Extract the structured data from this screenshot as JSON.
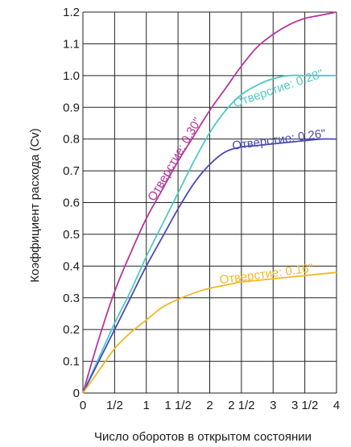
{
  "chart_data": {
    "type": "line",
    "title": "",
    "xlabel": "Число оборотов в открытом состоянии",
    "ylabel": "Коэффициент расхода (Cv)",
    "xlim": [
      0,
      4
    ],
    "ylim": [
      0,
      1.2
    ],
    "grid": true,
    "x_ticks": [
      {
        "value": 0,
        "label": "0"
      },
      {
        "value": 0.5,
        "label": "1/2"
      },
      {
        "value": 1,
        "label": "1"
      },
      {
        "value": 1.5,
        "label": "1 1/2"
      },
      {
        "value": 2,
        "label": "2"
      },
      {
        "value": 2.5,
        "label": "2 1/2"
      },
      {
        "value": 3,
        "label": "3"
      },
      {
        "value": 3.5,
        "label": "3 1/2"
      },
      {
        "value": 4,
        "label": "4"
      }
    ],
    "y_ticks": [
      {
        "value": 0,
        "label": "0"
      },
      {
        "value": 0.1,
        "label": "0.1"
      },
      {
        "value": 0.2,
        "label": "0.2"
      },
      {
        "value": 0.3,
        "label": "0.3"
      },
      {
        "value": 0.4,
        "label": "0.4"
      },
      {
        "value": 0.5,
        "label": "0.5"
      },
      {
        "value": 0.6,
        "label": "0.6"
      },
      {
        "value": 0.7,
        "label": "0.7"
      },
      {
        "value": 0.8,
        "label": "0.8"
      },
      {
        "value": 0.9,
        "label": "0.9"
      },
      {
        "value": 1.0,
        "label": "1.0"
      },
      {
        "value": 1.1,
        "label": "1.1"
      },
      {
        "value": 1.2,
        "label": "1.2"
      }
    ],
    "series": [
      {
        "name": "Отверстие: 0.30\"",
        "color": "#b5379f",
        "x": [
          0,
          0.25,
          0.5,
          0.75,
          1,
          1.25,
          1.5,
          1.75,
          2,
          2.25,
          2.5,
          2.75,
          3,
          3.25,
          3.5,
          3.75,
          4
        ],
        "y": [
          0,
          0.17,
          0.32,
          0.44,
          0.55,
          0.64,
          0.73,
          0.81,
          0.89,
          0.96,
          1.03,
          1.09,
          1.13,
          1.16,
          1.18,
          1.19,
          1.2
        ]
      },
      {
        "name": "Отверстие: 0.28\"",
        "color": "#4ec9c4",
        "x": [
          0,
          0.25,
          0.5,
          0.75,
          1,
          1.25,
          1.5,
          1.75,
          2,
          2.25,
          2.5,
          2.75,
          3,
          3.25,
          3.5,
          3.75,
          4
        ],
        "y": [
          0,
          0.11,
          0.22,
          0.32,
          0.43,
          0.53,
          0.63,
          0.73,
          0.82,
          0.89,
          0.94,
          0.97,
          0.99,
          1.0,
          1.0,
          1.0,
          1.0
        ]
      },
      {
        "name": "Отверстие: 0.26\"",
        "color": "#4a4ab5",
        "x": [
          0,
          0.25,
          0.5,
          0.75,
          1,
          1.25,
          1.5,
          1.75,
          2,
          2.25,
          2.5,
          2.75,
          3,
          3.25,
          3.5,
          3.75,
          4
        ],
        "y": [
          0,
          0.1,
          0.2,
          0.3,
          0.4,
          0.49,
          0.58,
          0.66,
          0.72,
          0.76,
          0.775,
          0.78,
          0.785,
          0.79,
          0.795,
          0.8,
          0.8
        ]
      },
      {
        "name": "Отверстие: 0.16\"",
        "color": "#f0b823",
        "x": [
          0,
          0.25,
          0.5,
          0.75,
          1,
          1.25,
          1.5,
          1.75,
          2,
          2.25,
          2.5,
          2.75,
          3,
          3.25,
          3.5,
          3.75,
          4
        ],
        "y": [
          0,
          0.07,
          0.14,
          0.19,
          0.23,
          0.27,
          0.295,
          0.315,
          0.33,
          0.34,
          0.35,
          0.355,
          0.36,
          0.365,
          0.37,
          0.375,
          0.38
        ]
      }
    ]
  }
}
